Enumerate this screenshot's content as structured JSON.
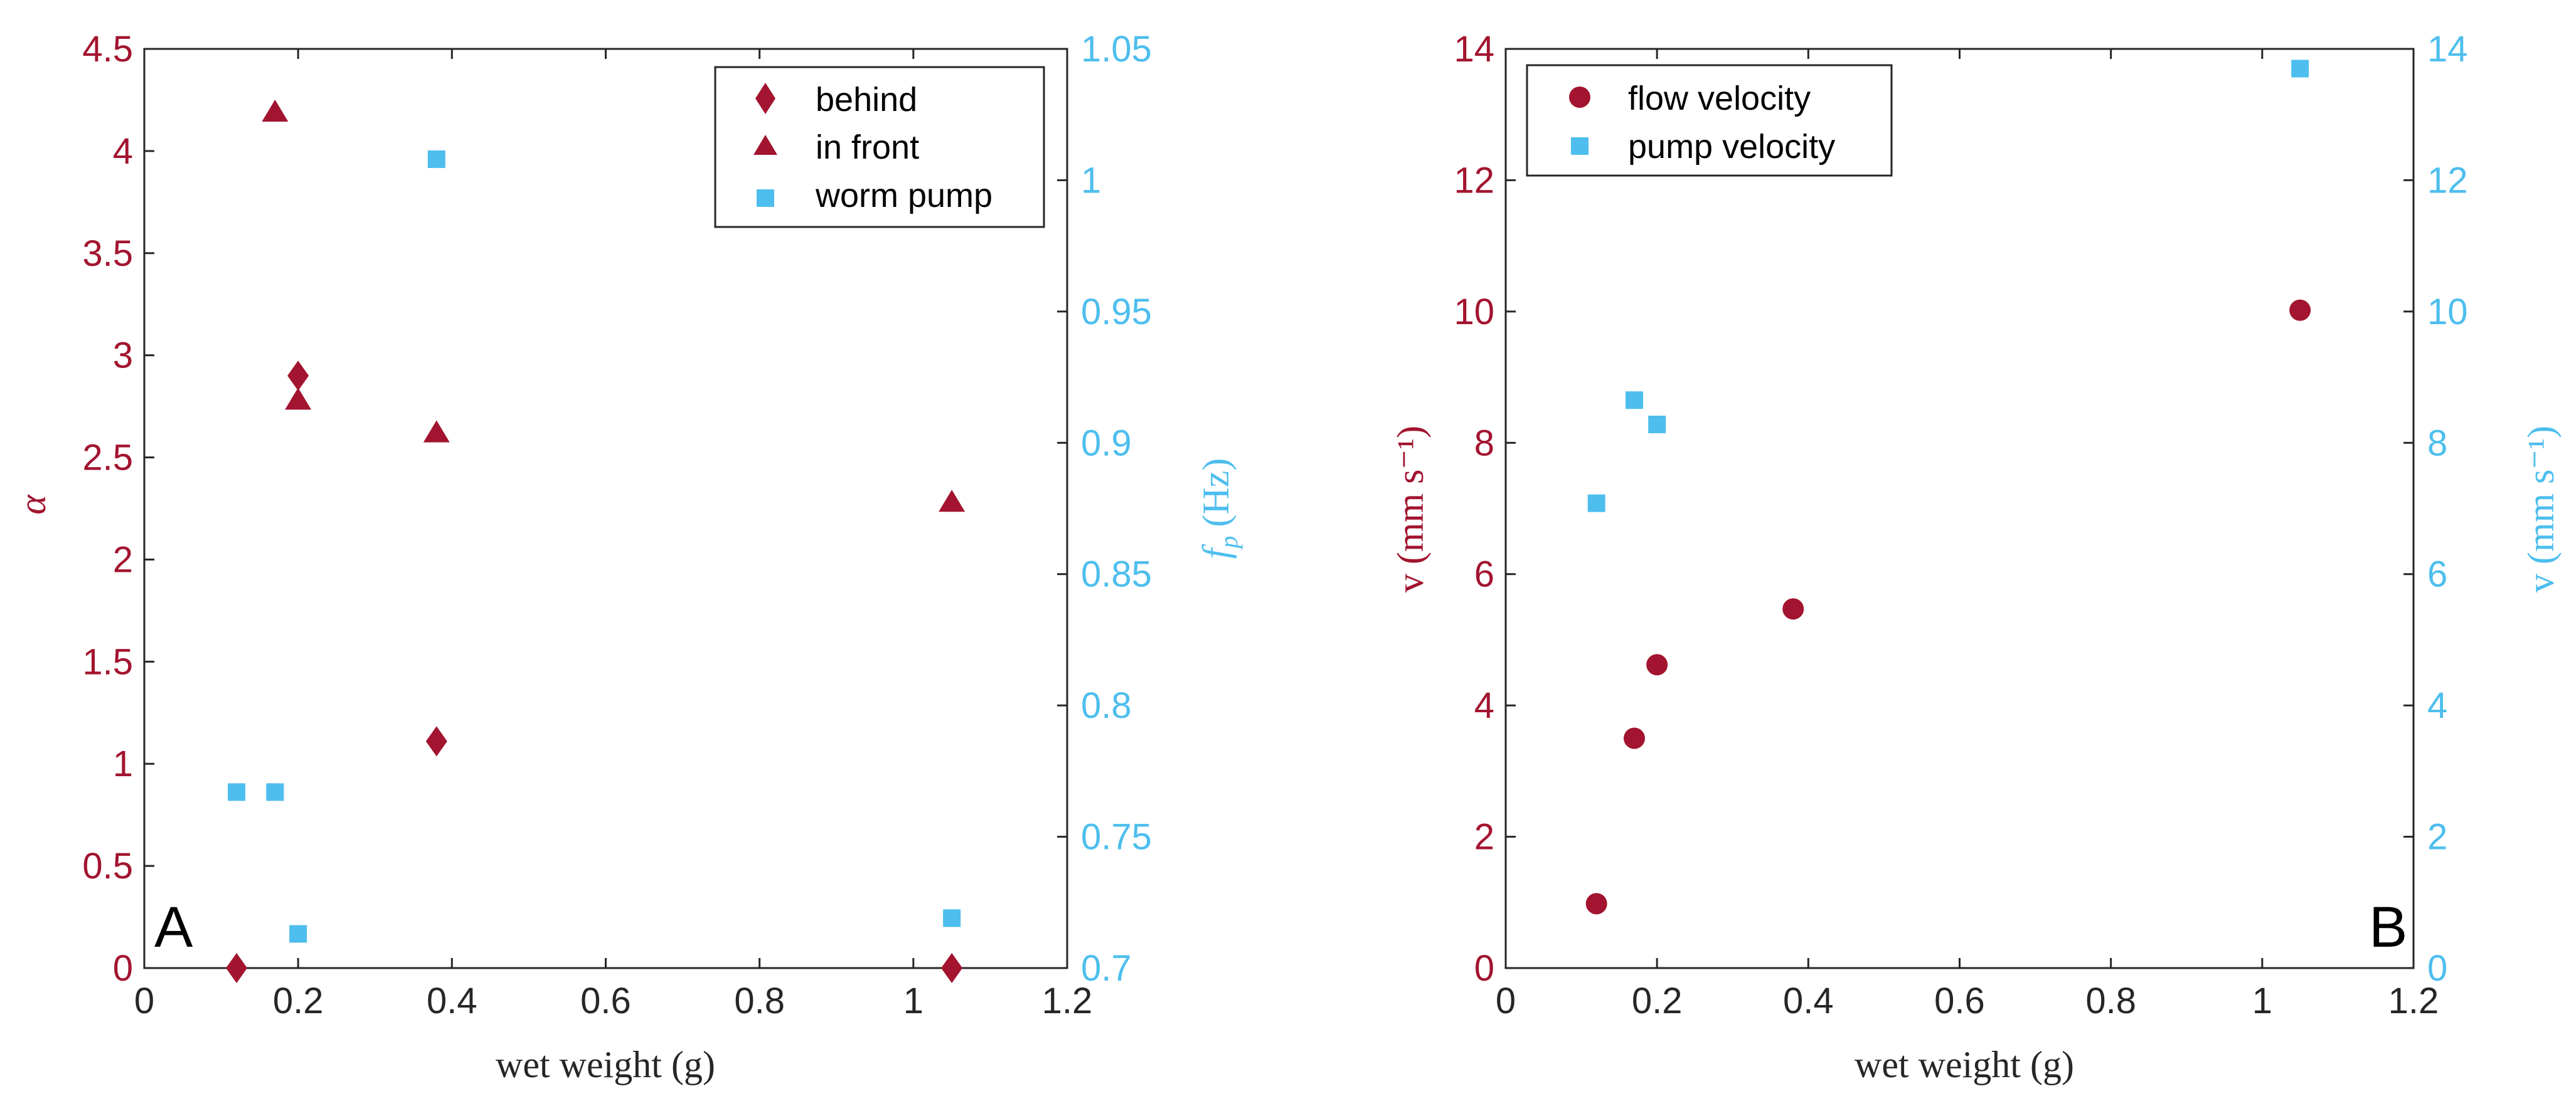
{
  "colors": {
    "red": "#A2142F",
    "blue": "#4DBEEE",
    "axis": "#262626"
  },
  "chart_data": [
    {
      "type": "scatter",
      "panel": "A",
      "xlabel": "wet weight (g)",
      "ylabel_left": "α",
      "ylabel_right_sym": "f",
      "ylabel_right_sub": "p",
      "ylabel_right_unit": "(Hz)",
      "xlim": [
        0,
        1.2
      ],
      "ylim_left": [
        0,
        4.5
      ],
      "ylim_right": [
        0.7,
        1.05
      ],
      "xticks": [
        "0",
        "0.2",
        "0.4",
        "0.6",
        "0.8",
        "1",
        "1.2"
      ],
      "yticks_left": [
        "0",
        "0.5",
        "1",
        "1.5",
        "2",
        "2.5",
        "3",
        "3.5",
        "4",
        "4.5"
      ],
      "yticks_right": [
        "0.7",
        "0.75",
        "0.8",
        "0.85",
        "0.9",
        "0.95",
        "1",
        "1.05"
      ],
      "legend_position": "top-right",
      "series": [
        {
          "name": "behind",
          "axis": "left",
          "marker": "diamond",
          "color": "#A2142F",
          "points": [
            [
              0.12,
              0.0
            ],
            [
              0.2,
              2.9
            ],
            [
              0.38,
              1.11
            ],
            [
              1.05,
              0.0
            ]
          ]
        },
        {
          "name": "in front",
          "axis": "left",
          "marker": "triangle",
          "color": "#A2142F",
          "points": [
            [
              0.17,
              4.19
            ],
            [
              0.2,
              2.78
            ],
            [
              0.38,
              2.62
            ],
            [
              1.05,
              2.28
            ]
          ]
        },
        {
          "name": "worm pump",
          "axis": "right",
          "marker": "square",
          "color": "#4DBEEE",
          "points": [
            [
              0.12,
              0.767
            ],
            [
              0.17,
              0.767
            ],
            [
              0.2,
              0.713
            ],
            [
              0.38,
              1.008
            ],
            [
              1.05,
              0.719
            ]
          ]
        }
      ]
    },
    {
      "type": "scatter",
      "panel": "B",
      "xlabel": "wet weight (g)",
      "ylabel_left": "v (mm s⁻¹)",
      "ylabel_right": "v (mm s⁻¹)",
      "xlim": [
        0,
        1.2
      ],
      "ylim_left": [
        0,
        14
      ],
      "ylim_right": [
        0,
        14
      ],
      "xticks": [
        "0",
        "0.2",
        "0.4",
        "0.6",
        "0.8",
        "1",
        "1.2"
      ],
      "yticks_left": [
        "0",
        "2",
        "4",
        "6",
        "8",
        "10",
        "12",
        "14"
      ],
      "yticks_right": [
        "0",
        "2",
        "4",
        "6",
        "8",
        "10",
        "12",
        "14"
      ],
      "legend_position": "top-left",
      "series": [
        {
          "name": "flow velocity",
          "axis": "left",
          "marker": "circle",
          "color": "#A2142F",
          "points": [
            [
              0.12,
              0.98
            ],
            [
              0.17,
              3.5
            ],
            [
              0.2,
              4.62
            ],
            [
              0.38,
              5.47
            ],
            [
              1.05,
              10.02
            ]
          ]
        },
        {
          "name": "pump velocity",
          "axis": "right",
          "marker": "square",
          "color": "#4DBEEE",
          "points": [
            [
              0.12,
              7.08
            ],
            [
              0.17,
              8.65
            ],
            [
              0.2,
              8.28
            ],
            [
              1.05,
              13.7
            ]
          ]
        }
      ]
    }
  ]
}
